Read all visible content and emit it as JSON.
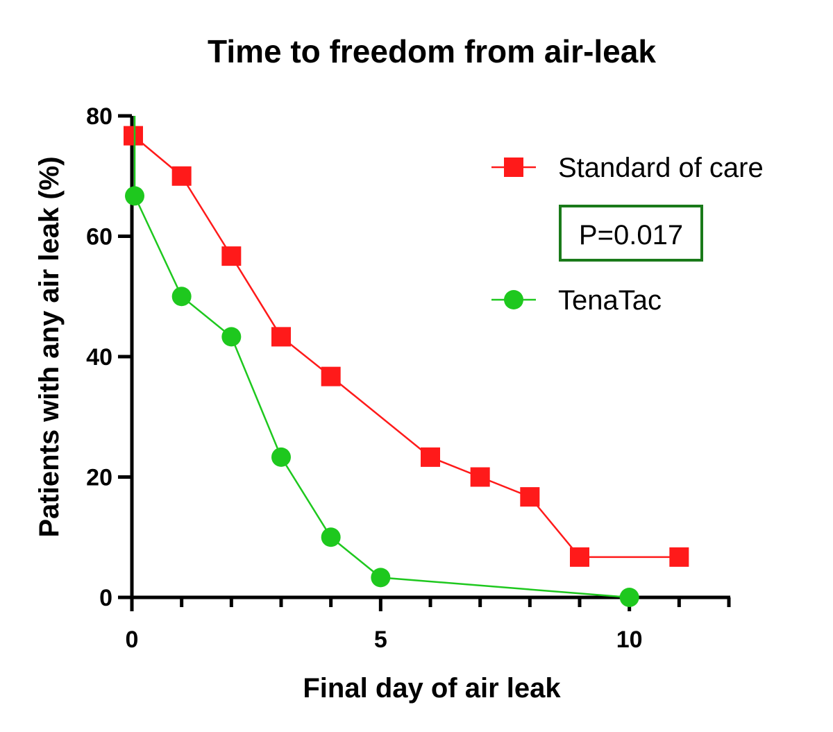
{
  "chart_data": {
    "type": "line",
    "title": "Time to freedom from air-leak",
    "xlabel": "Final day of air leak",
    "ylabel": "Patients with any air leak (%)",
    "xlim": [
      0,
      12
    ],
    "ylim": [
      0,
      80
    ],
    "x_ticks": [
      0,
      5,
      10
    ],
    "x_minor_ticks": [
      1,
      2,
      3,
      4,
      6,
      7,
      8,
      9,
      11,
      12
    ],
    "y_ticks": [
      0,
      20,
      40,
      60,
      80
    ],
    "grid": false,
    "legend_position": "top-right",
    "annotation": "P=0.017",
    "annotation_border_color": "#1a7a1a",
    "series": [
      {
        "name": "Standard of care",
        "color": "#ff1a1a",
        "marker": "square",
        "points": [
          {
            "x": 0,
            "y": 76.7
          },
          {
            "x": 1,
            "y": 70
          },
          {
            "x": 2,
            "y": 56.7
          },
          {
            "x": 3,
            "y": 43.3
          },
          {
            "x": 4,
            "y": 36.7
          },
          {
            "x": 6,
            "y": 23.3
          },
          {
            "x": 7,
            "y": 20
          },
          {
            "x": 8,
            "y": 16.7
          },
          {
            "x": 9,
            "y": 6.7
          },
          {
            "x": 11,
            "y": 6.7
          }
        ]
      },
      {
        "name": "TenaTac",
        "color": "#1ec81e",
        "marker": "circle",
        "points": [
          {
            "x": 0,
            "y": 80
          },
          {
            "x": 0,
            "y": 66.7
          },
          {
            "x": 1,
            "y": 50
          },
          {
            "x": 2,
            "y": 43.3
          },
          {
            "x": 3,
            "y": 23.3
          },
          {
            "x": 4,
            "y": 10
          },
          {
            "x": 5,
            "y": 3.3
          },
          {
            "x": 10,
            "y": 0
          }
        ]
      }
    ]
  }
}
